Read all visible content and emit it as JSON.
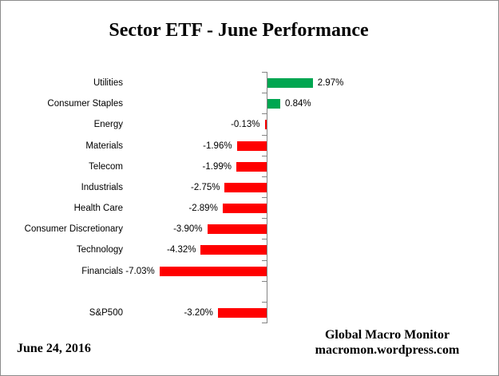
{
  "title": "Sector ETF - June Performance",
  "footer": {
    "date": "June 24, 2016",
    "credit_line1": "Global Macro Monitor",
    "credit_line2": "macromon.wordpress.com"
  },
  "colors": {
    "positive_bar": "#00A651",
    "negative_bar": "#FF0000",
    "axis": "#848484",
    "text": "#000000",
    "border": "#8C8C8C"
  },
  "chart_data": {
    "type": "bar",
    "orientation": "horizontal",
    "title": "Sector ETF - June Performance",
    "unit": "%",
    "grid": false,
    "legend": false,
    "value_axis_labels_hidden": true,
    "xlim": [
      -7.5,
      3.5
    ],
    "categories": [
      "Utilities",
      "Consumer Staples",
      "Energy",
      "Materials",
      "Telecom",
      "Industrials",
      "Health Care",
      "Consumer Discretionary",
      "Technology",
      "Financials",
      "",
      "S&P500"
    ],
    "values": [
      2.97,
      0.84,
      -0.13,
      -1.96,
      -1.99,
      -2.75,
      -2.89,
      -3.9,
      -4.32,
      -7.03,
      null,
      -3.2
    ],
    "value_labels": [
      "2.97%",
      "0.84%",
      "-0.13%",
      "-1.96%",
      "-1.99%",
      "-2.75%",
      "-2.89%",
      "-3.90%",
      "-4.32%",
      "-7.03%",
      "",
      "-3.20%"
    ]
  }
}
